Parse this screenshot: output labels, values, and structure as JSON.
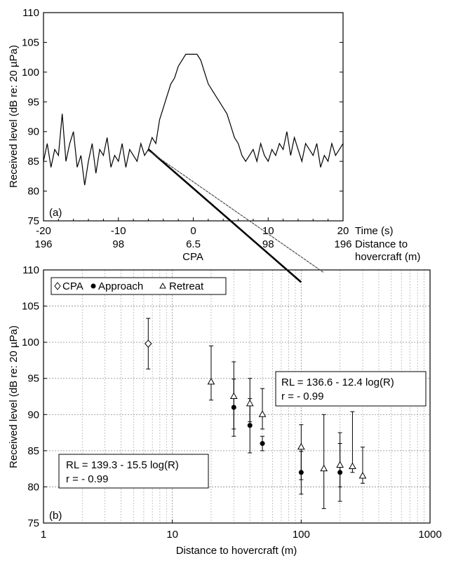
{
  "chart_data": [
    {
      "panel": "(a)",
      "type": "line",
      "ylabel": "Received level (dB re: 20 µPa)",
      "ylim": [
        75,
        110
      ],
      "yticks": [
        75,
        80,
        85,
        90,
        95,
        100,
        105,
        110
      ],
      "xlim": [
        -20,
        20
      ],
      "xticks": [
        -20,
        -10,
        0,
        10,
        20
      ],
      "x_tick_labels_time": [
        "-20",
        "-10",
        "0",
        "10",
        "20"
      ],
      "x_tick_labels_distance": [
        "196",
        "98",
        "6.5",
        "98",
        "196"
      ],
      "x_row1_title": "Time (s)",
      "x_row2_title": "Distance to",
      "x_row3_title": "hovercraft (m)",
      "cpa_label": "CPA",
      "grid": false,
      "series": [
        {
          "x": [
            -20,
            -19.5,
            -19,
            -18.5,
            -18,
            -17.5,
            -17,
            -16.5,
            -16,
            -15.5,
            -15,
            -14.5,
            -14,
            -13.5,
            -13,
            -12.5,
            -12,
            -11.5,
            -11,
            -10.5,
            -10,
            -9.5,
            -9,
            -8.5,
            -8,
            -7.5,
            -7,
            -6.5,
            -6,
            -5.5,
            -5,
            -4.5,
            -4,
            -3.5,
            -3,
            -2.5,
            -2,
            -1.5,
            -1,
            -0.5,
            0,
            0.5,
            1,
            1.5,
            2,
            2.5,
            3,
            3.5,
            4,
            4.5,
            5,
            5.5,
            6,
            6.5,
            7,
            7.5,
            8,
            8.5,
            9,
            9.5,
            10,
            10.5,
            11,
            11.5,
            12,
            12.5,
            13,
            13.5,
            14,
            14.5,
            15,
            15.5,
            16,
            16.5,
            17,
            17.5,
            18,
            18.5,
            19,
            19.5,
            20
          ],
          "values": [
            85,
            88,
            84,
            87,
            86,
            93,
            85,
            88,
            90,
            84,
            86,
            81,
            85,
            88,
            83,
            87,
            86,
            89,
            84,
            86,
            85,
            88,
            84,
            87,
            86,
            85,
            88,
            86,
            87,
            89,
            88,
            92,
            94,
            96,
            98,
            99,
            101,
            102,
            103,
            103,
            103,
            103,
            102,
            100,
            98,
            97,
            96,
            95,
            94,
            93,
            91,
            89,
            88,
            86,
            85,
            86,
            87,
            85,
            88,
            86,
            85,
            87,
            86,
            88,
            87,
            90,
            86,
            89,
            87,
            85,
            88,
            87,
            86,
            88,
            84,
            86,
            85,
            88,
            86,
            87,
            88
          ]
        }
      ]
    },
    {
      "panel": "(b)",
      "type": "scatter",
      "xscale": "log",
      "xlabel": "Distance to hovercraft (m)",
      "ylabel": "Received level (dB re: 20 µPa)",
      "xlim": [
        1,
        1000
      ],
      "ylim": [
        75,
        110
      ],
      "xticks": [
        1,
        10,
        100,
        1000
      ],
      "yticks": [
        75,
        80,
        85,
        90,
        95,
        100,
        105,
        110
      ],
      "grid": true,
      "legend_position": "top-left",
      "legend": [
        "CPA",
        "Approach",
        "Retreat"
      ],
      "series": [
        {
          "name": "CPA",
          "marker": "diamond-open",
          "x": [
            6.5
          ],
          "y": [
            99.8
          ],
          "err_low": [
            96.3
          ],
          "err_high": [
            103.3
          ]
        },
        {
          "name": "Approach",
          "marker": "circle-filled",
          "x": [
            30,
            40,
            50,
            100,
            200
          ],
          "y": [
            91,
            88.5,
            86,
            82,
            82
          ],
          "err_low": [
            87,
            84.7,
            85,
            79,
            78
          ],
          "err_high": [
            94.9,
            92.2,
            87,
            84.9,
            86
          ]
        },
        {
          "name": "Retreat",
          "marker": "triangle-open",
          "x": [
            20,
            30,
            40,
            50,
            100,
            150,
            200,
            250,
            300
          ],
          "y": [
            94.5,
            92.5,
            91.5,
            90,
            85.5,
            82.5,
            83,
            82.8,
            81.5
          ],
          "err_low": [
            92,
            88,
            89,
            88,
            81,
            77,
            80,
            82,
            80.5
          ],
          "err_high": [
            99.5,
            97.3,
            95,
            93.6,
            88.6,
            90,
            87.5,
            90.4,
            85.5
          ]
        }
      ],
      "regression_lines": [
        {
          "name": "Approach fit",
          "style": "solid-thick",
          "equation": "RL = 139.3 - 15.5 log(R)",
          "r_text": "r = - 0.99",
          "x_range": [
            6.5,
            100
          ],
          "intercept": 139.3,
          "slope": -15.5
        },
        {
          "name": "Retreat fit",
          "style": "thin",
          "equation": "RL = 136.6 - 12.4 log(R)",
          "r_text": "r = - 0.99",
          "x_range": [
            6.5,
            150
          ],
          "intercept": 136.6,
          "slope": -12.4
        }
      ]
    }
  ]
}
